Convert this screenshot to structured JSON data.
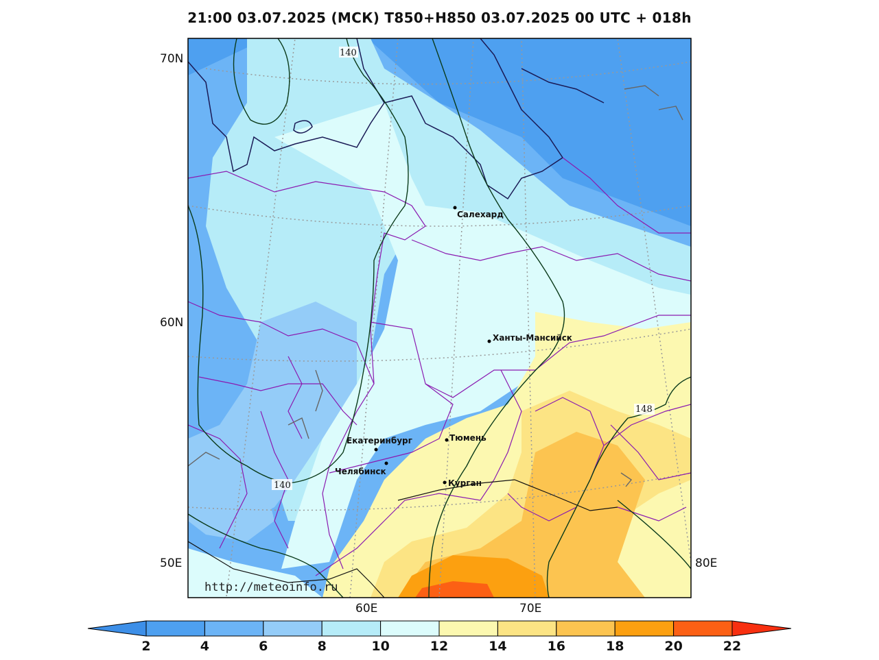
{
  "title": "21:00 03.07.2025 (МСК) T850+H850 03.07.2025 00 UTC + 018h",
  "watermark": "http://meteoinfo.ru",
  "latitude_labels": [
    "70N",
    "60N",
    "50E"
  ],
  "longitude_labels": [
    "60E",
    "70E",
    "80E"
  ],
  "cities": [
    {
      "name": "Салехард"
    },
    {
      "name": "Ханты-Мансийск"
    },
    {
      "name": "Екатеринбург"
    },
    {
      "name": "Тюмень"
    },
    {
      "name": "Челябинск"
    },
    {
      "name": "Курган"
    }
  ],
  "contour_labels": [
    "140",
    "140",
    "148"
  ],
  "colorbar": {
    "ticks": [
      "2",
      "4",
      "6",
      "8",
      "10",
      "12",
      "14",
      "16",
      "18",
      "20",
      "22"
    ],
    "colors": [
      "#3d8fe8",
      "#4ea0f0",
      "#6cb4f6",
      "#94ccf8",
      "#b6ecf8",
      "#dcfcfc",
      "#fcf8b0",
      "#fce484",
      "#fcc450",
      "#fca010",
      "#fc6014",
      "#f83010"
    ]
  }
}
